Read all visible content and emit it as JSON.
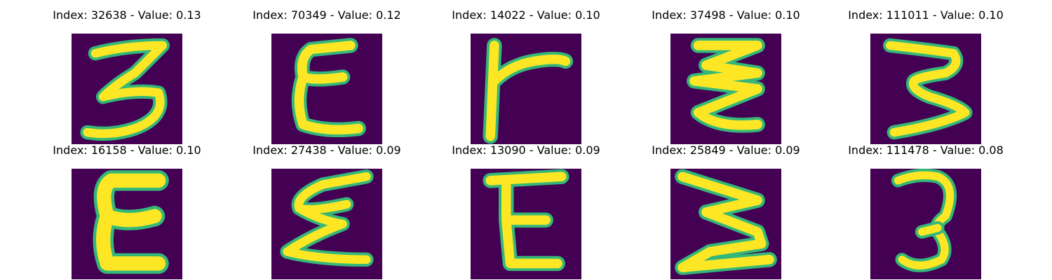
{
  "colors": {
    "background": "#440154",
    "edge": "#35b779",
    "stroke": "#fde725"
  },
  "panels": [
    {
      "title": "Index: 32638 - Value: 0.13",
      "glyph": "3"
    },
    {
      "title": "Index: 70349 - Value: 0.12",
      "glyph": "E"
    },
    {
      "title": "Index: 14022 - Value: 0.10",
      "glyph": "r"
    },
    {
      "title": "Index: 37498 - Value: 0.10",
      "glyph": "3"
    },
    {
      "title": "Index: 111011 - Value: 0.10",
      "glyph": "3"
    },
    {
      "title": "Index: 16158 - Value: 0.10",
      "glyph": "E"
    },
    {
      "title": "Index: 27438 - Value: 0.09",
      "glyph": "E"
    },
    {
      "title": "Index: 13090 - Value: 0.09",
      "glyph": "E"
    },
    {
      "title": "Index: 25849 - Value: 0.09",
      "glyph": "3"
    },
    {
      "title": "Index: 111478 - Value: 0.08",
      "glyph": "3"
    }
  ]
}
